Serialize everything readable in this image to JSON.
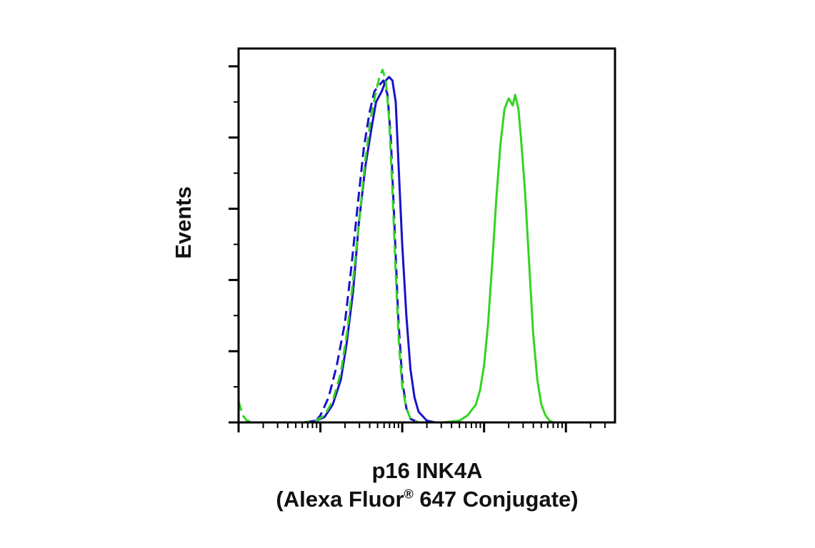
{
  "chart_data": {
    "type": "line",
    "title": "",
    "xlabel_line1": "p16 INK4A",
    "xlabel_line2_prefix": "(Alexa Fluor",
    "xlabel_line2_reg": "®",
    "xlabel_line2_suffix": " 647 Conjugate)",
    "ylabel": "Events",
    "x_scale": "log",
    "xlim": [
      0,
      4.6
    ],
    "ylim": [
      0,
      105
    ],
    "grid": false,
    "legend": "none",
    "series": [
      {
        "style": "solid",
        "color": "#1a12c8",
        "x": [
          0.4,
          0.8,
          0.95,
          1.05,
          1.15,
          1.25,
          1.32,
          1.4,
          1.47,
          1.55,
          1.62,
          1.68,
          1.75,
          1.8,
          1.84,
          1.88,
          1.92,
          1.96,
          2.0,
          2.05,
          2.1,
          2.15,
          2.2,
          2.3,
          2.4,
          2.6,
          4.6
        ],
        "y": [
          0,
          0,
          0.5,
          1.5,
          5,
          12,
          22,
          37,
          56,
          72,
          82,
          90,
          93,
          96,
          97,
          96,
          90,
          70,
          50,
          30,
          15,
          7,
          3,
          0.5,
          0,
          0,
          0
        ]
      },
      {
        "style": "dashed",
        "color": "#1a12c8",
        "x": [
          0.4,
          0.8,
          0.95,
          1.0,
          1.1,
          1.2,
          1.3,
          1.38,
          1.46,
          1.53,
          1.6,
          1.66,
          1.73,
          1.77,
          1.82,
          1.86,
          1.9,
          1.95,
          2.0,
          2.05,
          2.1,
          2.2,
          2.3,
          2.5,
          4.6
        ],
        "y": [
          0,
          0,
          0.5,
          2,
          7,
          16,
          28,
          44,
          62,
          77,
          87,
          93,
          95,
          96,
          92,
          80,
          58,
          30,
          12,
          4,
          1,
          0,
          0,
          0,
          0
        ]
      },
      {
        "style": "dashed",
        "color": "#33d422",
        "x": [
          0.0,
          0.05,
          0.1,
          0.2,
          0.4,
          0.8,
          0.95,
          1.05,
          1.15,
          1.25,
          1.33,
          1.4,
          1.48,
          1.55,
          1.62,
          1.68,
          1.72,
          1.76,
          1.8,
          1.84,
          1.88,
          1.92,
          1.96,
          2.0,
          2.05,
          2.1,
          2.15,
          2.2,
          2.3,
          2.5,
          4.6
        ],
        "y": [
          6,
          2,
          0.5,
          0,
          0,
          0,
          0.5,
          2,
          6,
          14,
          26,
          40,
          58,
          74,
          86,
          93,
          97,
          99,
          96,
          85,
          65,
          42,
          22,
          10,
          4,
          1,
          0.5,
          0,
          0,
          0,
          0
        ]
      },
      {
        "style": "solid",
        "color": "#33d422",
        "x": [
          0.0,
          0.1,
          2.5,
          2.7,
          2.8,
          2.9,
          2.95,
          3.0,
          3.05,
          3.1,
          3.15,
          3.2,
          3.25,
          3.3,
          3.35,
          3.38,
          3.42,
          3.45,
          3.5,
          3.55,
          3.6,
          3.65,
          3.7,
          3.75,
          3.8,
          3.85,
          3.9,
          4.0,
          4.6
        ],
        "y": [
          0,
          0,
          0,
          0.5,
          2,
          5,
          9,
          16,
          28,
          45,
          63,
          78,
          88,
          91,
          89,
          92,
          88,
          80,
          65,
          45,
          25,
          12,
          5,
          2,
          0.5,
          0,
          0,
          0,
          0
        ]
      }
    ]
  }
}
